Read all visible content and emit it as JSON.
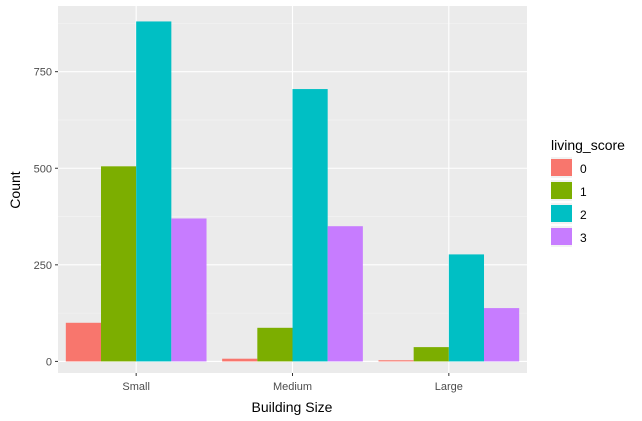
{
  "chart_data": {
    "type": "bar",
    "xlabel": "Building Size",
    "ylabel": "Count",
    "categories": [
      "Small",
      "Medium",
      "Large"
    ],
    "ylim": [
      -30,
      920
    ],
    "yticks": [
      0,
      250,
      500,
      750
    ],
    "grid": true,
    "legend": {
      "title": "living_score",
      "placement": "right"
    },
    "series": [
      {
        "name": "0",
        "color": "#F8766D",
        "values": [
          100,
          7,
          3
        ]
      },
      {
        "name": "1",
        "color": "#7CAE00",
        "values": [
          505,
          87,
          37
        ]
      },
      {
        "name": "2",
        "color": "#00BFC4",
        "values": [
          880,
          705,
          277
        ]
      },
      {
        "name": "3",
        "color": "#C77CFF",
        "values": [
          370,
          350,
          138
        ]
      }
    ]
  }
}
